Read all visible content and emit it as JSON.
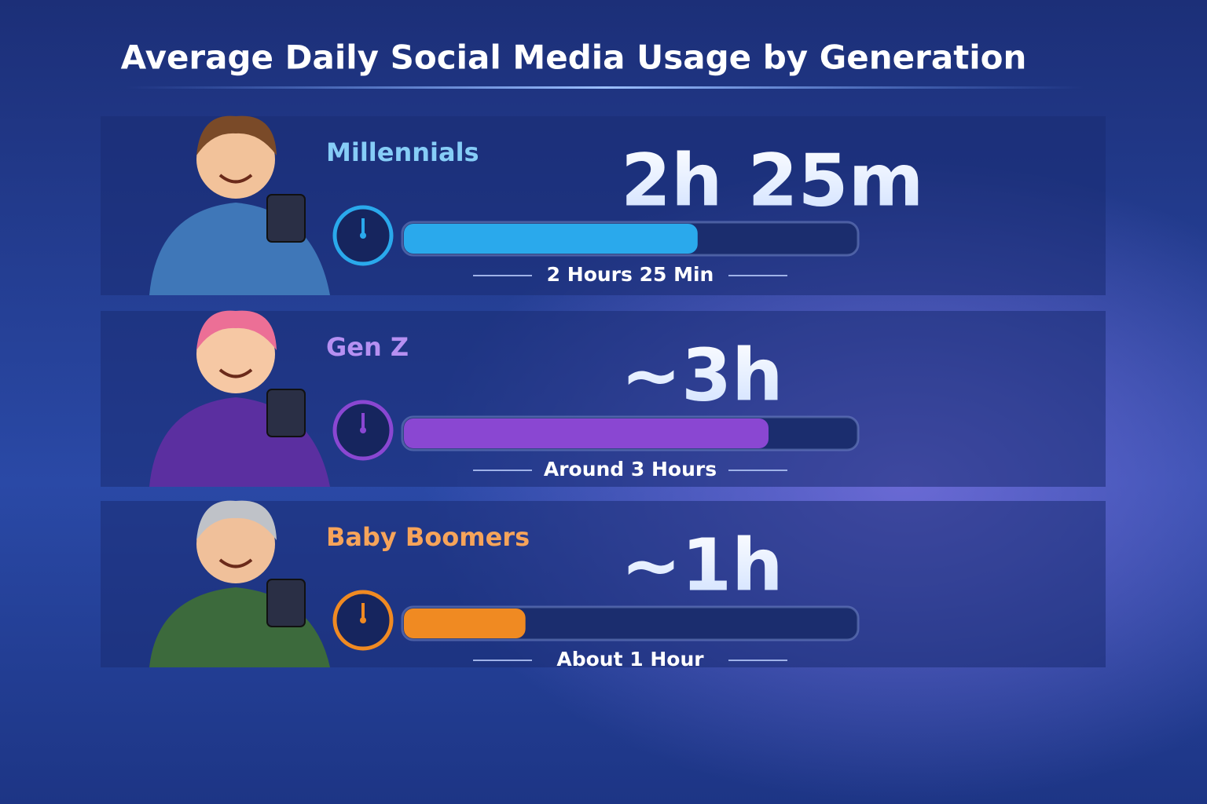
{
  "chart_data": {
    "type": "bar",
    "title": "Average Daily Social Media Usage by Generation",
    "categories": [
      "Millennials",
      "Gen Z",
      "Baby Boomers"
    ],
    "values": [
      2.41667,
      3,
      1
    ],
    "value_labels": [
      "2h 25m",
      "~3h",
      "~1h"
    ],
    "sublabels": [
      "2 Hours 25 Min",
      "Around 3 Hours",
      "About 1 Hour"
    ],
    "colors": [
      "#2aa9ec",
      "#8a47d2",
      "#f08a22"
    ],
    "label_colors": [
      "#86cdf7",
      "#b690f2",
      "#f6a45a"
    ]
  }
}
